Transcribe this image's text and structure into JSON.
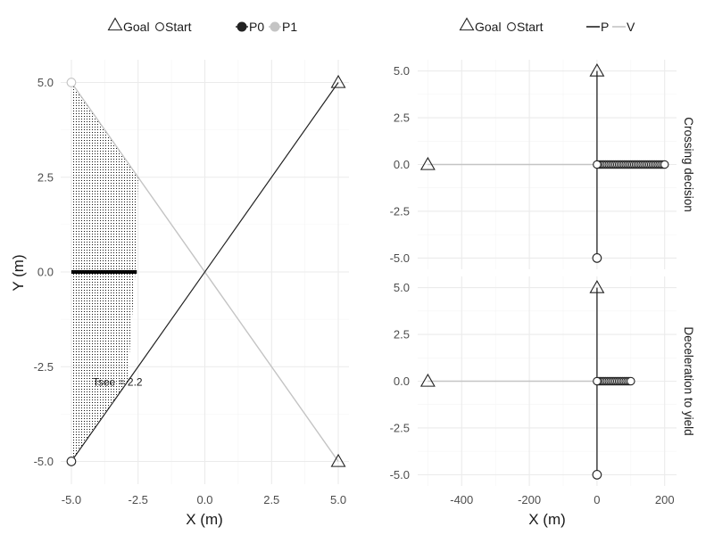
{
  "colors": {
    "p0": "#222222",
    "p1": "#c4c4c4",
    "grid_major": "#ebebeb",
    "grid_minor": "#f4f4f4",
    "text": "#4d4d4d"
  },
  "chart_data": [
    {
      "type": "line",
      "panel": "left",
      "xlabel": "X (m)",
      "ylabel": "Y (m)",
      "xlim": [
        -5.4,
        5.4
      ],
      "ylim": [
        -5.6,
        5.6
      ],
      "xticks": [
        -5.0,
        -2.5,
        0.0,
        2.5,
        5.0
      ],
      "xtick_labels": [
        "-5.0",
        "-2.5",
        "0.0",
        "2.5",
        "5.0"
      ],
      "yticks": [
        -5.0,
        -2.5,
        0.0,
        2.5,
        5.0
      ],
      "ytick_labels": [
        "-5.0",
        "-2.5",
        "0.0",
        "2.5",
        "5.0"
      ],
      "grid": true,
      "legend": {
        "position": "top",
        "shape_items": [
          {
            "label": "Goal",
            "shape": "triangle"
          },
          {
            "label": "Start",
            "shape": "circle"
          }
        ],
        "agent_items": [
          {
            "label": "P0"
          },
          {
            "label": "P1"
          }
        ]
      },
      "series": [
        {
          "name": "P0",
          "start": [
            -5,
            -5
          ],
          "goal": [
            5,
            5
          ]
        },
        {
          "name": "P1",
          "start": [
            -5,
            5
          ],
          "goal": [
            5,
            -5
          ]
        }
      ],
      "visible_region": {
        "polygon": [
          [
            -5,
            5
          ],
          [
            -2.5,
            2.5
          ],
          [
            -2.6,
            0
          ],
          [
            -2.9,
            -2.9
          ],
          [
            -5,
            -5
          ]
        ],
        "line_y": 0,
        "line_x": [
          -5,
          -2.55
        ]
      },
      "annotation": {
        "text": "Tsee = 2.2",
        "x": -4.2,
        "y": -2.9
      }
    },
    {
      "type": "line",
      "panel": "right",
      "xlabel": "X (m)",
      "xlim": [
        -530,
        235
      ],
      "ylim": [
        -5.6,
        5.6
      ],
      "xticks": [
        -400,
        -200,
        0,
        200
      ],
      "xtick_labels": [
        "-400",
        "-200",
        "0",
        "200"
      ],
      "yticks": [
        -5.0,
        -2.5,
        0.0,
        2.5,
        5.0
      ],
      "ytick_labels": [
        "-5.0",
        "-2.5",
        "0.0",
        "2.5",
        "5.0"
      ],
      "grid": true,
      "legend": {
        "position": "top",
        "shape_items": [
          {
            "label": "Goal",
            "shape": "triangle"
          },
          {
            "label": "Start",
            "shape": "circle"
          }
        ],
        "agent_items": [
          {
            "label": "P"
          },
          {
            "label": "V"
          }
        ]
      },
      "facets": [
        {
          "strip": "Crossing decision",
          "P": {
            "start": [
              0,
              -5
            ],
            "goal": [
              0,
              5
            ]
          },
          "V": {
            "start": [
              0,
              0
            ],
            "goal": [
              -500,
              0
            ],
            "end_x": 200,
            "marker_xs": [
              5,
              10,
              15,
              20,
              25,
              30,
              35,
              40,
              45,
              50,
              55,
              60,
              65,
              70,
              75,
              80,
              85,
              90,
              95,
              100,
              105,
              110,
              115,
              120,
              125,
              130,
              135,
              140,
              145,
              150,
              155,
              160,
              165,
              170,
              175,
              180,
              185,
              190,
              195,
              200
            ]
          }
        },
        {
          "strip": "Deceleration to yield",
          "P": {
            "start": [
              0,
              -5
            ],
            "goal": [
              0,
              5
            ]
          },
          "V": {
            "start": [
              0,
              0
            ],
            "goal": [
              -500,
              0
            ],
            "end_x": 100,
            "marker_xs": [
              5,
              10,
              15,
              20,
              25,
              30,
              35,
              40,
              45,
              50,
              55,
              60,
              65,
              70,
              75,
              80,
              85,
              90,
              95,
              100
            ]
          }
        }
      ]
    }
  ]
}
